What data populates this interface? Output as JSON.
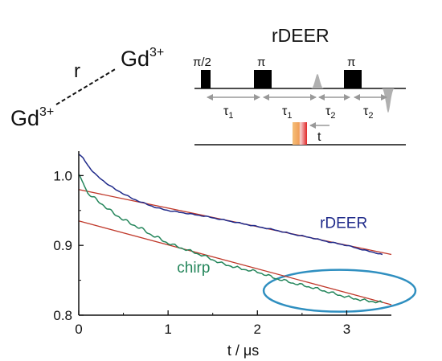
{
  "schematic": {
    "ion_left": "Gd",
    "ion_right": "Gd",
    "ion_charge": "3+",
    "distance_label": "r"
  },
  "pulse_sequence": {
    "title": "rDEER",
    "pulse_labels": [
      "π/2",
      "π",
      "π"
    ],
    "delay_labels": [
      "τ1",
      "τ1",
      "τ2",
      "τ2"
    ],
    "tau_symbol": "τ",
    "tau_subscripts": [
      "1",
      "1",
      "2",
      "2"
    ],
    "chirp_time_label": "t"
  },
  "colors": {
    "rdeer": "#1f2a8a",
    "chirp": "#23855a",
    "fit": "#c0392b",
    "ellipse": "#2f8fc0",
    "pulse": "#000000",
    "echo": "#b0b0b0",
    "arrow": "#999999",
    "chirp_pulse_orange": "#f0a05a",
    "chirp_pulse_red": "#e02828"
  },
  "chart_data": {
    "type": "line",
    "xlabel": "t / μs",
    "ylabel": "",
    "xlim": [
      0,
      3.5
    ],
    "ylim": [
      0.8,
      1.035
    ],
    "xticks": [
      0,
      1,
      2,
      3
    ],
    "yticks": [
      0.8,
      0.9,
      1.0
    ],
    "xtick_labels": [
      "0",
      "1",
      "2",
      "3"
    ],
    "ytick_labels": [
      "0.8",
      "0.9",
      "1.0"
    ],
    "grid": false,
    "series": [
      {
        "name": "rDEER",
        "x": [
          0,
          0.05,
          0.1,
          0.15,
          0.2,
          0.3,
          0.4,
          0.5,
          0.6,
          0.7,
          0.8,
          0.9,
          1.0,
          1.2,
          1.4,
          1.6,
          1.8,
          2.0,
          2.2,
          2.4,
          2.6,
          2.8,
          3.0,
          3.2,
          3.4
        ],
        "y": [
          1.03,
          1.025,
          1.015,
          1.007,
          1.0,
          0.99,
          0.981,
          0.974,
          0.967,
          0.962,
          0.957,
          0.953,
          0.95,
          0.946,
          0.942,
          0.937,
          0.932,
          0.927,
          0.922,
          0.916,
          0.911,
          0.905,
          0.9,
          0.893,
          0.887
        ]
      },
      {
        "name": "chirp",
        "x": [
          0,
          0.05,
          0.1,
          0.15,
          0.2,
          0.3,
          0.4,
          0.5,
          0.6,
          0.7,
          0.8,
          0.9,
          1.0,
          1.2,
          1.4,
          1.6,
          1.8,
          2.0,
          2.2,
          2.4,
          2.6,
          2.8,
          3.0,
          3.2,
          3.4
        ],
        "y": [
          1.0,
          0.99,
          0.975,
          0.97,
          0.965,
          0.955,
          0.945,
          0.937,
          0.93,
          0.924,
          0.916,
          0.91,
          0.903,
          0.894,
          0.885,
          0.874,
          0.867,
          0.862,
          0.853,
          0.846,
          0.84,
          0.833,
          0.826,
          0.821,
          0.818
        ]
      }
    ],
    "fits": [
      {
        "x": [
          0,
          3.5
        ],
        "y": [
          0.98,
          0.887
        ]
      },
      {
        "x": [
          0,
          3.5
        ],
        "y": [
          0.935,
          0.815
        ]
      }
    ],
    "annotations": [
      {
        "text": "rDEER",
        "x": 2.7,
        "y": 0.925,
        "color_key": "rdeer"
      },
      {
        "text": "chirp",
        "x": 1.1,
        "y": 0.861,
        "color_key": "chirp"
      }
    ],
    "highlight_ellipse": {
      "cx": 2.92,
      "cy": 0.835,
      "rx": 0.85,
      "ry": 0.03
    }
  }
}
